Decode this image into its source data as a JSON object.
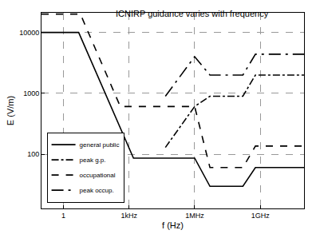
{
  "chart_data": {
    "type": "line",
    "title": "ICNIRP guidance varies with frequency",
    "x_label": "f (Hz)",
    "y_label": "E (V/m)",
    "log": true,
    "grid": true,
    "legend": "bottom left",
    "xlim": [
      0.1,
      100000000000
    ],
    "ylim": [
      13,
      21000
    ],
    "xticks": [
      1,
      {
        "value": 1000,
        "label": "1kHz"
      },
      {
        "value": 1000000,
        "label": "1MHz"
      },
      {
        "value": 1000000000,
        "label": "1GHz"
      }
    ],
    "yticks": [
      100,
      1000,
      10000
    ],
    "series": [
      {
        "name": "general public",
        "color": "#000000",
        "line_style": "solid",
        "x": [
          0.1,
          5,
          1600,
          1000000,
          5000000,
          160000000,
          600000000,
          100000000000
        ],
        "values": [
          10000,
          10000,
          87,
          87,
          30,
          30,
          61,
          61
        ]
      },
      {
        "name": "peak g.p.",
        "color": "#000000",
        "line_style": "dashdot",
        "x": [
          46000,
          1000000,
          5000000,
          160000000,
          600000000,
          100000000000
        ],
        "values": [
          130,
          610,
          900,
          900,
          2000,
          2000
        ]
      },
      {
        "name": "occupational",
        "color": "#000000",
        "line_style": "dash",
        "x": [
          0.1,
          6,
          400,
          1000000,
          5000000,
          160000000,
          600000000,
          100000000000
        ],
        "values": [
          20000,
          20000,
          610,
          610,
          61,
          61,
          137,
          137
        ]
      },
      {
        "name": "peak occup.",
        "color": "#000000",
        "line_style": "longdashdot",
        "x": [
          46000,
          1000000,
          5000000,
          160000000,
          600000000,
          100000000000
        ],
        "values": [
          900,
          4000,
          2000,
          2000,
          4400,
          4400
        ]
      }
    ]
  }
}
